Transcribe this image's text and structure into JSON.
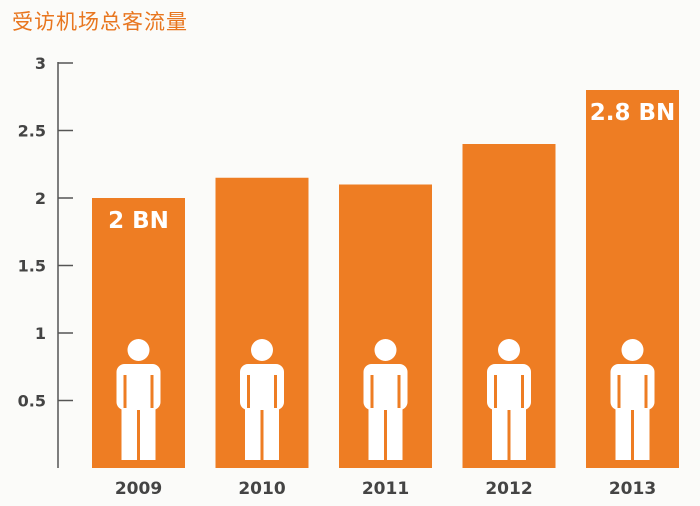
{
  "title": "受访机场总客流量",
  "colors": {
    "bar": "#ee7d23",
    "axis": "#555555",
    "text": "#444444",
    "label": "#ffffff",
    "person": "#ffffff",
    "title": "#e8761f"
  },
  "chart_data": {
    "type": "bar",
    "title": "受访机场总客流量",
    "categories": [
      "2009",
      "2010",
      "2011",
      "2012",
      "2013"
    ],
    "values": [
      2.0,
      2.15,
      2.1,
      2.4,
      2.8
    ],
    "ylim": [
      0,
      3
    ],
    "yticks": [
      "0.5",
      "1",
      "1.5",
      "2",
      "2.5",
      "3"
    ],
    "xlabel": "",
    "ylabel": "",
    "grid": false,
    "bar_labels": [
      {
        "category": "2009",
        "text": "2 BN"
      },
      {
        "category": "2013",
        "text": "2.8 BN"
      }
    ],
    "bar_icon": "person-icon"
  }
}
